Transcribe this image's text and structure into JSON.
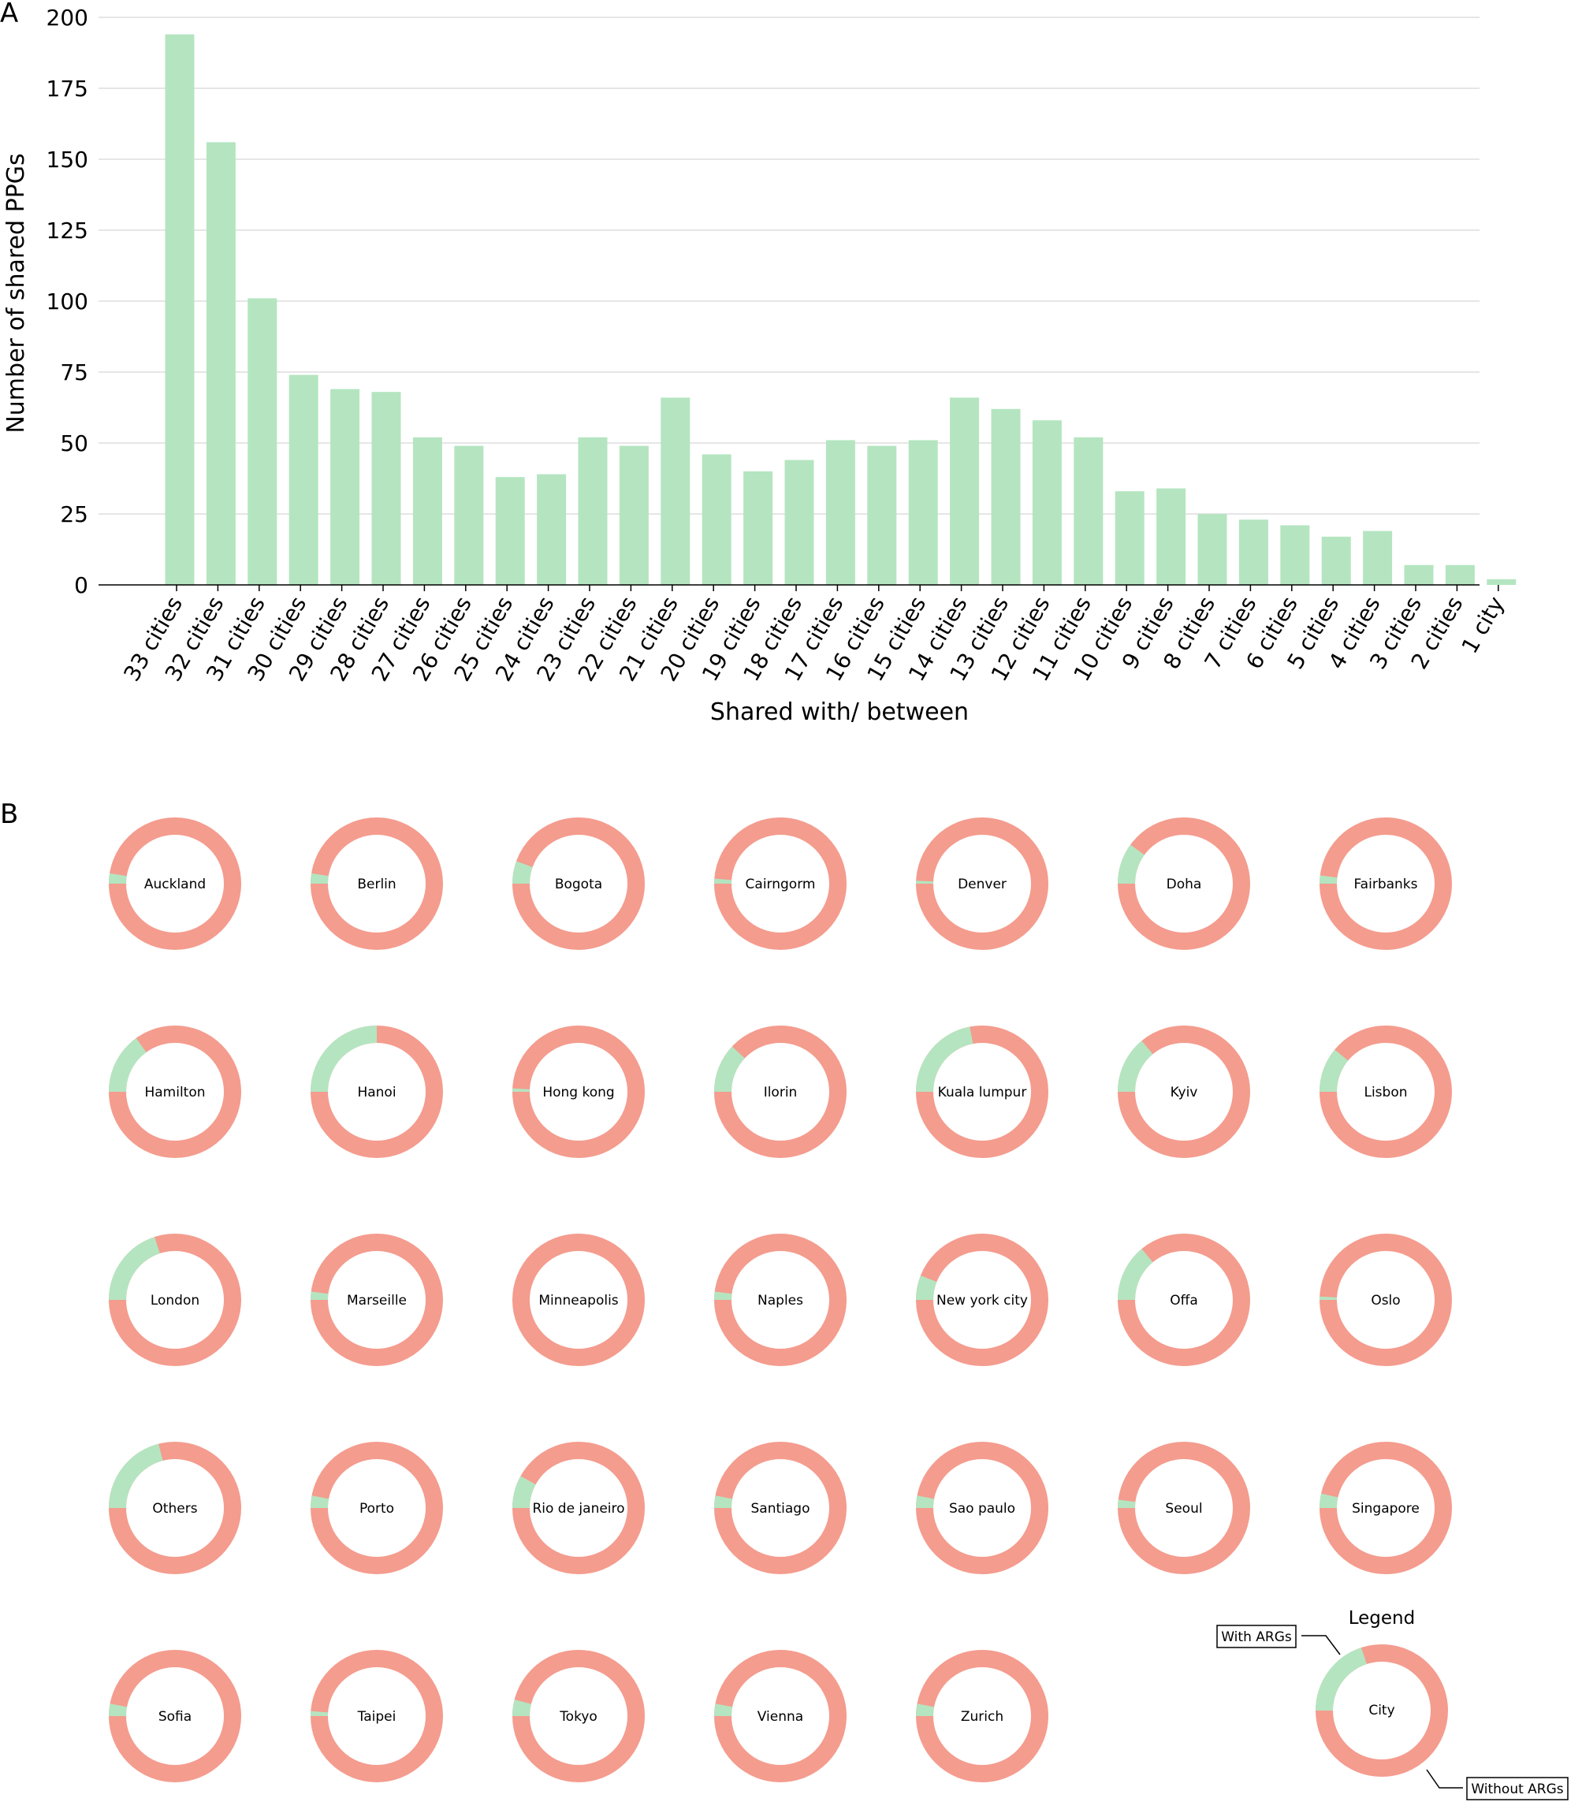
{
  "panel_a_label": "A",
  "panel_b_label": "B",
  "colors": {
    "with_args": "#b4e5c0",
    "without_args": "#f49c8e",
    "grid": "#dddddd"
  },
  "chart_data": [
    {
      "type": "bar",
      "xlabel": "Shared with/ between",
      "ylabel": "Number of shared PPGs",
      "ylim": [
        0,
        200
      ],
      "yticks": [
        0,
        25,
        50,
        75,
        100,
        125,
        150,
        175,
        200
      ],
      "grid": "horizontal",
      "categories": [
        "33 cities",
        "32 cities",
        "31 cities",
        "30 cities",
        "29 cities",
        "28 cities",
        "27 cities",
        "26 cities",
        "25 cities",
        "24 cities",
        "23 cities",
        "22 cities",
        "21 cities",
        "20 cities",
        "19 cities",
        "18 cities",
        "17 cities",
        "16 cities",
        "15 cities",
        "14 cities",
        "13 cities",
        "12 cities",
        "11 cities",
        "10 cities",
        "9 cities",
        "8 cities",
        "7 cities",
        "6 cities",
        "5 cities",
        "4 cities",
        "3 cities",
        "2 cities",
        "1 city"
      ],
      "values": [
        194,
        156,
        101,
        74,
        69,
        68,
        52,
        49,
        38,
        39,
        52,
        49,
        66,
        46,
        40,
        44,
        51,
        49,
        51,
        66,
        62,
        58,
        52,
        33,
        34,
        25,
        23,
        21,
        17,
        19,
        7,
        7,
        2
      ]
    },
    {
      "type": "pie",
      "style": "donut",
      "series_names": [
        "With ARGs",
        "Without ARGs"
      ],
      "cities": [
        {
          "name": "Auckland",
          "with_args_fraction": 0.025
        },
        {
          "name": "Berlin",
          "with_args_fraction": 0.025
        },
        {
          "name": "Bogota",
          "with_args_fraction": 0.055
        },
        {
          "name": "Cairngorm",
          "with_args_fraction": 0.012
        },
        {
          "name": "Denver",
          "with_args_fraction": 0.007
        },
        {
          "name": "Doha",
          "with_args_fraction": 0.1
        },
        {
          "name": "Fairbanks",
          "with_args_fraction": 0.02
        },
        {
          "name": "Hamilton",
          "with_args_fraction": 0.15
        },
        {
          "name": "Hanoi",
          "with_args_fraction": 0.25
        },
        {
          "name": "Hong kong",
          "with_args_fraction": 0.008
        },
        {
          "name": "Ilorin",
          "with_args_fraction": 0.12
        },
        {
          "name": "Kuala lumpur",
          "with_args_fraction": 0.22
        },
        {
          "name": "Kyiv",
          "with_args_fraction": 0.14
        },
        {
          "name": "Lisbon",
          "with_args_fraction": 0.11
        },
        {
          "name": "London",
          "with_args_fraction": 0.2
        },
        {
          "name": "Marseille",
          "with_args_fraction": 0.02
        },
        {
          "name": "Minneapolis",
          "with_args_fraction": 0
        },
        {
          "name": "Naples",
          "with_args_fraction": 0.02
        },
        {
          "name": "New york city",
          "with_args_fraction": 0.06
        },
        {
          "name": "Offa",
          "with_args_fraction": 0.14
        },
        {
          "name": "Oslo",
          "with_args_fraction": 0.008
        },
        {
          "name": "Others",
          "with_args_fraction": 0.21
        },
        {
          "name": "Porto",
          "with_args_fraction": 0.03
        },
        {
          "name": "Rio de janeiro",
          "with_args_fraction": 0.08
        },
        {
          "name": "Santiago",
          "with_args_fraction": 0.03
        },
        {
          "name": "Sao paulo",
          "with_args_fraction": 0.03
        },
        {
          "name": "Seoul",
          "with_args_fraction": 0.02
        },
        {
          "name": "Singapore",
          "with_args_fraction": 0.035
        },
        {
          "name": "Sofia",
          "with_args_fraction": 0.03
        },
        {
          "name": "Taipei",
          "with_args_fraction": 0.012
        },
        {
          "name": "Tokyo",
          "with_args_fraction": 0.04
        },
        {
          "name": "Vienna",
          "with_args_fraction": 0.03
        },
        {
          "name": "Zurich",
          "with_args_fraction": 0.03
        }
      ]
    }
  ],
  "legend": {
    "title": "Legend",
    "center_label": "City",
    "with_label": "With ARGs",
    "without_label": "Without ARGs",
    "with_args_fraction": 0.2
  }
}
